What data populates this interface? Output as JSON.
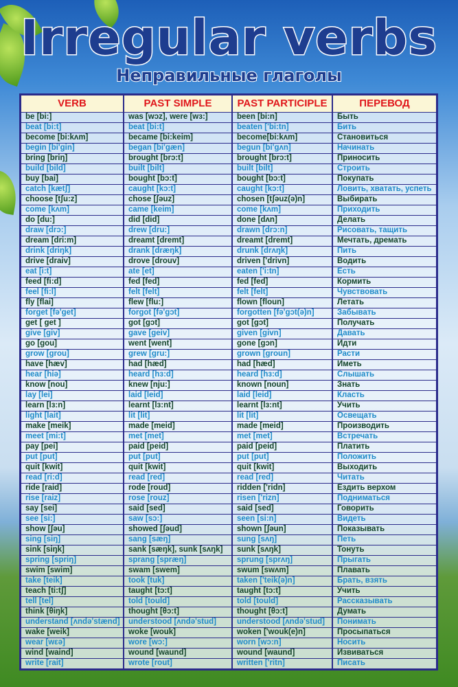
{
  "title": "Irregular verbs",
  "subtitle": "Неправильные глаголы",
  "colors": {
    "title": "#1e3d8f",
    "header_text": "#e0161b",
    "header_bg": "#fbf6d6",
    "row_dark": "#13442a",
    "row_blue": "#1f8bc9",
    "border": "#2a2a8a"
  },
  "headers": [
    "VERB",
    "PAST SIMPLE",
    "PAST PARTICIPLE",
    "ПЕРЕВОД"
  ],
  "rows": [
    [
      "be [bi:]",
      "was [wɔz], were [wɜ:]",
      "been [bi:n]",
      "Быть"
    ],
    [
      "beat [bi:t]",
      "beat [bi:t]",
      "beaten ['bi:tn]",
      "Бить"
    ],
    [
      "become [bi:kʌm]",
      "became [bi:keim]",
      "become[bi:kʌm]",
      "Становиться"
    ],
    [
      "begin [bi'gin]",
      "began [bi'gæn]",
      "begun [bi'gʌn]",
      "Начинать"
    ],
    [
      "bring [briŋ]",
      "brought [brɔ:t]",
      "brought [brɔ:t]",
      "Приносить"
    ],
    [
      "build [bild]",
      "built [bilt]",
      "built [bilt]",
      "Строить"
    ],
    [
      "buy [bai]",
      "bought [bɔ:t]",
      "bought [bɔ:t]",
      "Покупать"
    ],
    [
      "catch [kætʃ]",
      "caught [kɔ:t]",
      "caught [kɔ:t]",
      "Ловить, хватать, успеть"
    ],
    [
      "choose [tʃu:z]",
      "chose [ʃəuz]",
      "chosen [tʃəuz(ə)n]",
      "Выбирать"
    ],
    [
      "come [kʌm]",
      "came [keim]",
      "come [kʌm]",
      "Приходить"
    ],
    [
      "do [du:]",
      "did [did]",
      "done [dʌn]",
      "Делать"
    ],
    [
      "draw [drɔ:]",
      "drew [dru:]",
      "drawn [drɔ:n]",
      "Рисовать, тащить"
    ],
    [
      "dream [dri:m]",
      "dreamt [dremt]",
      "dreamt [dremt]",
      "Мечтать, дремать"
    ],
    [
      "drink [driŋk]",
      "drank [dræŋk]",
      "drunk [drʌŋk]",
      "Пить"
    ],
    [
      "drive [draiv]",
      "drove [drouv]",
      "driven ['drivn]",
      "Водить"
    ],
    [
      "eat [i:t]",
      "ate [et]",
      "eaten ['i:tn]",
      "Есть"
    ],
    [
      "feed [fi:d]",
      "fed [fed]",
      "fed [fed]",
      "Кормить"
    ],
    [
      "feel [fi:l]",
      "felt [felt]",
      "felt [felt]",
      "Чувствовать"
    ],
    [
      "fly [flai]",
      "flew [flu:]",
      "flown [floun]",
      "Летать"
    ],
    [
      "forget [fə'get]",
      "forgot [fə'gɔt]",
      "forgotten [fə'gɔt(ə)n]",
      "Забывать"
    ],
    [
      "get [ get ]",
      "got [gɔt]",
      "got [gɔt]",
      "Получать"
    ],
    [
      "give [giv]",
      "gave [geiv]",
      "given [givn]",
      "Давать"
    ],
    [
      "go [gou]",
      "went [went]",
      "gone [gɔn]",
      "Идти"
    ],
    [
      "grow [grou]",
      "grew [gru:]",
      "grown [groun]",
      "Расти"
    ],
    [
      "have [hæv]",
      "had [hæd]",
      "had [hæd]",
      "Иметь"
    ],
    [
      "hear [hiə]",
      "heard [hɜ:d]",
      "heard [hɜ:d]",
      "Слышать"
    ],
    [
      "know [nou]",
      "knew [nju:]",
      "known [noun]",
      "Знать"
    ],
    [
      "lay [lei]",
      "laid [leid]",
      "laid [leid]",
      "Класть"
    ],
    [
      "learn [lɜ:n]",
      "learnt [lɜ:nt]",
      "learnt [lɜ:nt]",
      "Учить"
    ],
    [
      "light [lait]",
      "lit [lit]",
      "lit [lit]",
      "Освещать"
    ],
    [
      "make [meik]",
      "made [meid]",
      "made [meid]",
      "Производить"
    ],
    [
      "meet [mi:t]",
      "met [met]",
      "met [met]",
      "Встречать"
    ],
    [
      "pay [pei]",
      "paid [peid]",
      "paid [peid]",
      "Платить"
    ],
    [
      "put [put]",
      "put [put]",
      "put [put]",
      "Положить"
    ],
    [
      "quit [kwit]",
      "quit [kwit]",
      "quit [kwit]",
      "Выходить"
    ],
    [
      "read [ri:d]",
      "read [red]",
      "read [red]",
      "Читать"
    ],
    [
      "ride [raid]",
      "rode [roud]",
      "ridden ['ridn]",
      "Ездить верхом"
    ],
    [
      "rise [raiz]",
      "rose [rouz]",
      "risen ['rizn]",
      "Подниматься"
    ],
    [
      "say [sei]",
      "said [sed]",
      "said [sed]",
      "Говорить"
    ],
    [
      "see [si:]",
      "saw [sɔ:]",
      "seen [si:n]",
      "Видеть"
    ],
    [
      "show [ʃəu]",
      "showed [ʃəud]",
      "shown [ʃəun]",
      "Показывать"
    ],
    [
      "sing [siŋ]",
      "sang [sæŋ]",
      "sung [sʌŋ]",
      "Петь"
    ],
    [
      "sink [siŋk]",
      "sank [sæŋk], sunk [sʌŋk]",
      "sunk [sʌŋk]",
      "Тонуть"
    ],
    [
      "spring [spriŋ]",
      "sprang [spræŋ]",
      "sprung [sprʌŋ]",
      "Прыгать"
    ],
    [
      "swim [swim]",
      "swam [swem]",
      "swum [swʌm]",
      "Плавать"
    ],
    [
      "take [teik]",
      "took [tuk]",
      "taken ['teik(ə)n]",
      "Брать, взять"
    ],
    [
      "teach [ti:tʃ]",
      "taught [tɔ:t]",
      "taught [tɔ:t]",
      "Учить"
    ],
    [
      "tell [tel]",
      "told [tould]",
      "told [tould]",
      "Рассказывать"
    ],
    [
      "think [θiŋk]",
      "thought [θɔ:t]",
      "thought [θɔ:t]",
      "Думать"
    ],
    [
      "understand [ʌndə'stænd]",
      "understood [ʌndə'stud]",
      "understood [ʌndə'stud]",
      "Понимать"
    ],
    [
      "wake [weik]",
      "woke [wouk]",
      "woken ['wouk(e)n]",
      "Просыпаться"
    ],
    [
      "wear [wεə]",
      "wore [wɔ:]",
      "worn [wɔ:n]",
      "Носить"
    ],
    [
      "wind [waind]",
      "wound [waund]",
      "wound [waund]",
      "Извиваться"
    ],
    [
      "write [rait]",
      "wrote [rout]",
      "written ['ritn]",
      "Писать"
    ]
  ]
}
